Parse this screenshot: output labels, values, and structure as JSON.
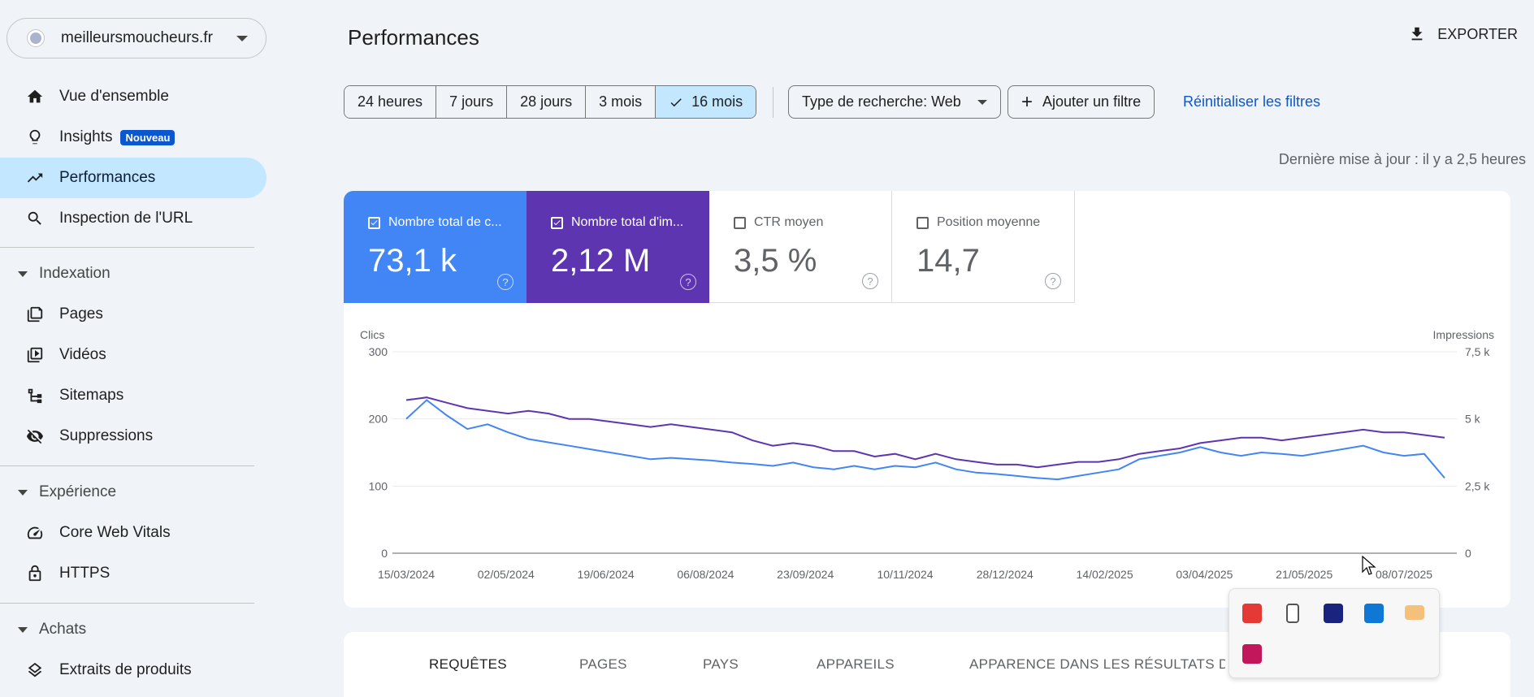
{
  "property": {
    "name": "meilleursmoucheurs.fr"
  },
  "sidebar": {
    "items": [
      {
        "label": "Vue d'ensemble",
        "icon": "home-icon"
      },
      {
        "label": "Insights",
        "icon": "lightbulb-icon",
        "badge": "Nouveau"
      },
      {
        "label": "Performances",
        "icon": "trending-up-icon",
        "active": true
      },
      {
        "label": "Inspection de l'URL",
        "icon": "search-icon"
      }
    ],
    "sections": [
      {
        "title": "Indexation",
        "items": [
          {
            "label": "Pages",
            "icon": "pages-icon"
          },
          {
            "label": "Vidéos",
            "icon": "video-icon"
          },
          {
            "label": "Sitemaps",
            "icon": "sitemap-icon"
          },
          {
            "label": "Suppressions",
            "icon": "eye-off-icon"
          }
        ]
      },
      {
        "title": "Expérience",
        "items": [
          {
            "label": "Core Web Vitals",
            "icon": "gauge-icon"
          },
          {
            "label": "HTTPS",
            "icon": "lock-icon"
          }
        ]
      },
      {
        "title": "Achats",
        "items": [
          {
            "label": "Extraits de produits",
            "icon": "layers-icon"
          }
        ]
      }
    ]
  },
  "header": {
    "title": "Performances",
    "export_label": "EXPORTER"
  },
  "filters": {
    "ranges": [
      "24 heures",
      "7 jours",
      "28 jours",
      "3 mois",
      "16 mois"
    ],
    "selected_range": "16 mois",
    "search_type": "Type de recherche: Web",
    "add_filter": "Ajouter un filtre",
    "reset": "Réinitialiser les filtres"
  },
  "last_update": "Dernière mise à jour : il y a 2,5 heures",
  "metrics": {
    "clicks": {
      "label": "Nombre total de c...",
      "value": "73,1 k",
      "checked": true,
      "color": "#4285f4"
    },
    "impressions": {
      "label": "Nombre total d'im...",
      "value": "2,12 M",
      "checked": true,
      "color": "#5e35b1"
    },
    "ctr": {
      "label": "CTR moyen",
      "value": "3,5 %",
      "checked": false
    },
    "position": {
      "label": "Position moyenne",
      "value": "14,7",
      "checked": false
    }
  },
  "chart_data": {
    "type": "line",
    "ylabel_left": "Clics",
    "ylabel_right": "Impressions",
    "y_ticks_left": [
      "300",
      "200",
      "100",
      "0"
    ],
    "y_ticks_right": [
      "7,5 k",
      "5 k",
      "2,5 k",
      "0"
    ],
    "ylim_left": [
      0,
      300
    ],
    "ylim_right": [
      0,
      7500
    ],
    "x_ticks": [
      "15/03/2024",
      "02/05/2024",
      "19/06/2024",
      "06/08/2024",
      "23/09/2024",
      "10/11/2024",
      "28/12/2024",
      "14/02/2025",
      "03/04/2025",
      "21/05/2025",
      "08/07/2025"
    ],
    "series": [
      {
        "name": "Clics",
        "axis": "left",
        "color": "#4285f4",
        "values": [
          200,
          228,
          205,
          185,
          192,
          180,
          170,
          165,
          160,
          155,
          150,
          145,
          140,
          142,
          140,
          138,
          135,
          133,
          130,
          135,
          128,
          125,
          130,
          125,
          130,
          128,
          135,
          125,
          120,
          118,
          115,
          112,
          110,
          115,
          120,
          125,
          140,
          145,
          150,
          158,
          150,
          145,
          150,
          148,
          145,
          150,
          155,
          160,
          150,
          145,
          148,
          112
        ]
      },
      {
        "name": "Impressions",
        "axis": "right",
        "color": "#5e35b1",
        "values": [
          5700,
          5800,
          5600,
          5400,
          5300,
          5200,
          5300,
          5200,
          5000,
          5000,
          4900,
          4800,
          4700,
          4800,
          4700,
          4600,
          4500,
          4200,
          4000,
          4100,
          4000,
          3800,
          3800,
          3600,
          3700,
          3500,
          3700,
          3500,
          3400,
          3300,
          3300,
          3200,
          3300,
          3400,
          3400,
          3500,
          3700,
          3800,
          3900,
          4100,
          4200,
          4300,
          4300,
          4200,
          4300,
          4400,
          4500,
          4600,
          4500,
          4500,
          4400,
          4300
        ]
      }
    ]
  },
  "table_tabs": [
    "REQUÊTES",
    "PAGES",
    "PAYS",
    "APPAREILS",
    "APPARENCE DANS LES RÉSULTATS DE R"
  ],
  "tray_icons": [
    "bitdefender-icon",
    "usb-drive-icon",
    "password-manager-icon",
    "outlook-icon",
    "mail-icon",
    "app-icon"
  ]
}
